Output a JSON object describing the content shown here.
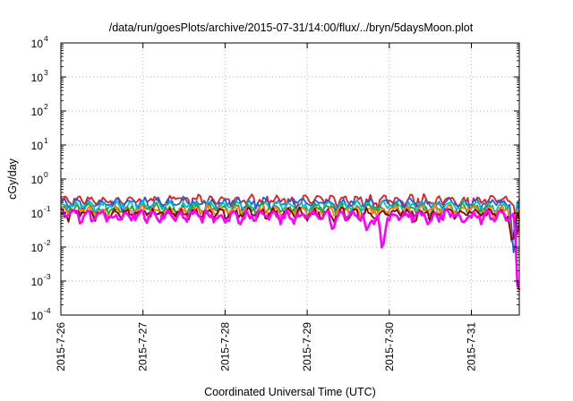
{
  "chart_data": {
    "type": "line",
    "title": "/data/run/goesPlots/archive/2015-07-31/14:00/flux/../bryn/5daysMoon.plot",
    "xlabel": "Coordinated Universal Time (UTC)",
    "ylabel": "cGy/day",
    "yscale": "log",
    "ylim": [
      0.0001,
      10000
    ],
    "xlim": [
      "2015-07-26 00:00",
      "2015-07-31 14:00"
    ],
    "grid": true,
    "y_ticks": [
      {
        "base": "10",
        "exp": "4",
        "value": 10000
      },
      {
        "base": "10",
        "exp": "3",
        "value": 1000
      },
      {
        "base": "10",
        "exp": "2",
        "value": 100
      },
      {
        "base": "10",
        "exp": "1",
        "value": 10
      },
      {
        "base": "10",
        "exp": "0",
        "value": 1
      },
      {
        "base": "10",
        "exp": "-1",
        "value": 0.1
      },
      {
        "base": "10",
        "exp": "-2",
        "value": 0.01
      },
      {
        "base": "10",
        "exp": "-3",
        "value": 0.001
      },
      {
        "base": "10",
        "exp": "-4",
        "value": 0.0001
      }
    ],
    "x_ticks": [
      "2015-7-26",
      "2015-7-27",
      "2015-7-28",
      "2015-7-29",
      "2015-7-30",
      "2015-7-31"
    ],
    "series": [
      {
        "color": "#e41a1c",
        "baseline": 0.24,
        "dips": [
          {
            "x": "2015-07-31 13:30",
            "y": 0.02
          }
        ]
      },
      {
        "color": "#1f5fd6",
        "baseline": 0.2,
        "dips": [
          {
            "x": "2015-07-31 12:30",
            "y": 0.004
          }
        ]
      },
      {
        "color": "#00c0d0",
        "baseline": 0.16,
        "dips": [
          {
            "x": "2015-07-31 12:00",
            "y": 0.008
          }
        ]
      },
      {
        "color": "#2ca02c",
        "baseline": 0.13,
        "dips": [
          {
            "x": "2015-07-31 12:00",
            "y": 0.01
          }
        ]
      },
      {
        "color": "#ff7f0e",
        "baseline": 0.115,
        "dips": [
          {
            "x": "2015-07-31 12:00",
            "y": 0.01
          }
        ]
      },
      {
        "color": "#8b0000",
        "baseline": 0.1,
        "dips": [
          {
            "x": "2015-07-31 12:00",
            "y": 0.01
          }
        ]
      },
      {
        "color": "#ff00ff",
        "baseline": 0.085,
        "dips": [
          {
            "x": "2015-07-29 07:30",
            "y": 0.03
          },
          {
            "x": "2015-07-29 17:30",
            "y": 0.025
          },
          {
            "x": "2015-07-29 22:00",
            "y": 0.006
          },
          {
            "x": "2015-07-30 12:00",
            "y": 0.05
          },
          {
            "x": "2015-07-30 21:30",
            "y": 0.05
          },
          {
            "x": "2015-07-31 13:45",
            "y": 0.00015
          }
        ]
      }
    ]
  }
}
